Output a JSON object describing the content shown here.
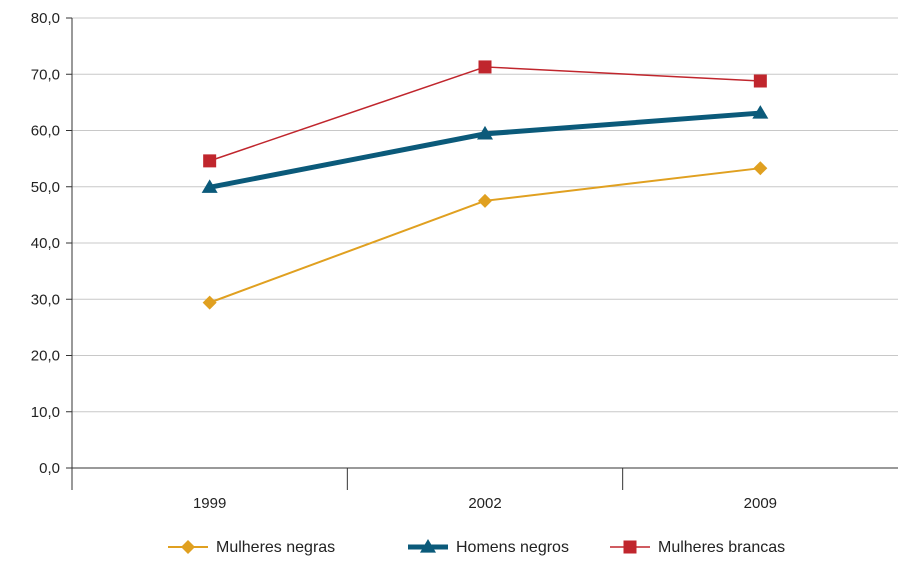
{
  "colors": {
    "grid": "#c8c8c8",
    "axis": "#333333",
    "mulheres_negras": "#e0a020",
    "homens_negros": "#0b5a7a",
    "mulheres_brancas": "#c0262d"
  },
  "chart_data": {
    "type": "line",
    "title": "",
    "xlabel": "",
    "ylabel": "",
    "categories": [
      "1999",
      "2002",
      "2009"
    ],
    "ylim": [
      0,
      80
    ],
    "yticks": [
      "0,0",
      "10,0",
      "20,0",
      "30,0",
      "40,0",
      "50,0",
      "60,0",
      "70,0",
      "80,0"
    ],
    "grid": true,
    "legend": "bottom",
    "series": [
      {
        "name": "Mulheres negras",
        "values": [
          29.4,
          47.5,
          53.3
        ],
        "marker": "diamond",
        "color_key": "mulheres_negras"
      },
      {
        "name": "Homens negros",
        "values": [
          49.9,
          59.4,
          63.1
        ],
        "marker": "triangle",
        "color_key": "homens_negros"
      },
      {
        "name": "Mulheres brancas",
        "values": [
          54.6,
          71.3,
          68.8
        ],
        "marker": "square",
        "color_key": "mulheres_brancas"
      }
    ]
  }
}
